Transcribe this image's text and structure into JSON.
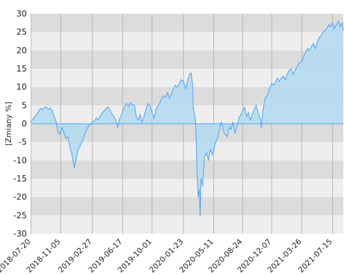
{
  "chart_data": {
    "type": "area",
    "title": "",
    "xlabel": "",
    "ylabel": "[Zmiany %]",
    "ylim": [
      -30,
      30
    ],
    "yticks": [
      -30,
      -25,
      -20,
      -15,
      -10,
      -5,
      0,
      5,
      10,
      15,
      20,
      25,
      30
    ],
    "xlim": [
      "2018-07-20",
      "2021-08-23"
    ],
    "xticks": [
      "2018-07-20",
      "2018-11-05",
      "2019-02-27",
      "2019-06-17",
      "2019-10-01",
      "2020-01-23",
      "2020-05-11",
      "2020-08-24",
      "2020-12-07",
      "2021-03-26",
      "2021-07-15"
    ],
    "grid": true,
    "colors": {
      "line": "#4a9ff5",
      "fill": "#b4dcf0",
      "band_dark": "#dcdcdc",
      "band_light": "#eeeeee"
    },
    "series": [
      {
        "name": "",
        "points": [
          [
            "2018-07-20",
            0.5
          ],
          [
            "2018-07-27",
            1.2
          ],
          [
            "2018-08-03",
            2.0
          ],
          [
            "2018-08-10",
            2.6
          ],
          [
            "2018-08-17",
            3.5
          ],
          [
            "2018-08-24",
            4.2
          ],
          [
            "2018-08-31",
            3.8
          ],
          [
            "2018-09-07",
            4.5
          ],
          [
            "2018-09-14",
            4.6
          ],
          [
            "2018-09-21",
            3.9
          ],
          [
            "2018-09-28",
            4.2
          ],
          [
            "2018-10-05",
            3.6
          ],
          [
            "2018-10-12",
            2.0
          ],
          [
            "2018-10-19",
            0.5
          ],
          [
            "2018-10-26",
            -2.5
          ],
          [
            "2018-11-02",
            -2.8
          ],
          [
            "2018-11-09",
            -1.0
          ],
          [
            "2018-11-16",
            -2.5
          ],
          [
            "2018-11-23",
            -4.0
          ],
          [
            "2018-11-30",
            -3.5
          ],
          [
            "2018-12-07",
            -6.0
          ],
          [
            "2018-12-14",
            -8.0
          ],
          [
            "2018-12-21",
            -11.0
          ],
          [
            "2018-12-24",
            -12.0
          ],
          [
            "2018-12-31",
            -9.5
          ],
          [
            "2019-01-07",
            -7.0
          ],
          [
            "2019-01-14",
            -6.0
          ],
          [
            "2019-01-21",
            -5.0
          ],
          [
            "2019-01-28",
            -3.5
          ],
          [
            "2019-02-04",
            -2.0
          ],
          [
            "2019-02-11",
            -1.0
          ],
          [
            "2019-02-18",
            -0.2
          ],
          [
            "2019-02-27",
            0.5
          ],
          [
            "2019-03-07",
            0.8
          ],
          [
            "2019-03-14",
            1.6
          ],
          [
            "2019-03-21",
            1.0
          ],
          [
            "2019-03-28",
            2.2
          ],
          [
            "2019-04-04",
            3.0
          ],
          [
            "2019-04-11",
            3.6
          ],
          [
            "2019-04-18",
            4.2
          ],
          [
            "2019-04-25",
            4.6
          ],
          [
            "2019-05-02",
            3.8
          ],
          [
            "2019-05-09",
            2.6
          ],
          [
            "2019-05-16",
            2.0
          ],
          [
            "2019-05-23",
            1.0
          ],
          [
            "2019-05-30",
            -1.0
          ],
          [
            "2019-06-06",
            1.5
          ],
          [
            "2019-06-13",
            2.5
          ],
          [
            "2019-06-17",
            3.5
          ],
          [
            "2019-06-24",
            4.8
          ],
          [
            "2019-07-01",
            5.5
          ],
          [
            "2019-07-08",
            4.8
          ],
          [
            "2019-07-15",
            5.8
          ],
          [
            "2019-07-22",
            5.2
          ],
          [
            "2019-07-29",
            5.0
          ],
          [
            "2019-08-05",
            2.0
          ],
          [
            "2019-08-12",
            1.0
          ],
          [
            "2019-08-19",
            2.5
          ],
          [
            "2019-08-26",
            0.5
          ],
          [
            "2019-09-02",
            2.0
          ],
          [
            "2019-09-09",
            4.0
          ],
          [
            "2019-09-16",
            5.5
          ],
          [
            "2019-09-23",
            5.0
          ],
          [
            "2019-10-01",
            3.0
          ],
          [
            "2019-10-08",
            1.5
          ],
          [
            "2019-10-15",
            4.0
          ],
          [
            "2019-10-22",
            4.8
          ],
          [
            "2019-10-29",
            5.6
          ],
          [
            "2019-11-05",
            7.0
          ],
          [
            "2019-11-12",
            7.6
          ],
          [
            "2019-11-19",
            7.2
          ],
          [
            "2019-11-26",
            8.5
          ],
          [
            "2019-12-03",
            7.0
          ],
          [
            "2019-12-10",
            8.0
          ],
          [
            "2019-12-17",
            9.5
          ],
          [
            "2019-12-24",
            10.5
          ],
          [
            "2019-12-31",
            10.0
          ],
          [
            "2020-01-07",
            10.8
          ],
          [
            "2020-01-14",
            12.0
          ],
          [
            "2020-01-23",
            11.5
          ],
          [
            "2020-01-31",
            9.5
          ],
          [
            "2020-02-07",
            12.0
          ],
          [
            "2020-02-14",
            13.5
          ],
          [
            "2020-02-20",
            13.8
          ],
          [
            "2020-02-24",
            11.0
          ],
          [
            "2020-02-28",
            4.0
          ],
          [
            "2020-03-06",
            1.0
          ],
          [
            "2020-03-09",
            -5.0
          ],
          [
            "2020-03-12",
            -14.0
          ],
          [
            "2020-03-16",
            -20.0
          ],
          [
            "2020-03-20",
            -18.0
          ],
          [
            "2020-03-23",
            -25.2
          ],
          [
            "2020-03-26",
            -15.0
          ],
          [
            "2020-04-01",
            -17.0
          ],
          [
            "2020-04-08",
            -9.0
          ],
          [
            "2020-04-15",
            -8.0
          ],
          [
            "2020-04-22",
            -10.0
          ],
          [
            "2020-04-29",
            -7.0
          ],
          [
            "2020-05-06",
            -8.5
          ],
          [
            "2020-05-11",
            -7.5
          ],
          [
            "2020-05-18",
            -5.0
          ],
          [
            "2020-05-25",
            -4.0
          ],
          [
            "2020-06-01",
            -1.5
          ],
          [
            "2020-06-08",
            0.5
          ],
          [
            "2020-06-15",
            -2.0
          ],
          [
            "2020-06-22",
            -3.0
          ],
          [
            "2020-06-29",
            -3.5
          ],
          [
            "2020-07-06",
            -1.0
          ],
          [
            "2020-07-13",
            -1.5
          ],
          [
            "2020-07-20",
            0.5
          ],
          [
            "2020-07-27",
            -2.5
          ],
          [
            "2020-08-03",
            -1.0
          ],
          [
            "2020-08-10",
            1.5
          ],
          [
            "2020-08-17",
            2.5
          ],
          [
            "2020-08-24",
            3.5
          ],
          [
            "2020-08-31",
            4.5
          ],
          [
            "2020-09-07",
            2.0
          ],
          [
            "2020-09-14",
            3.0
          ],
          [
            "2020-09-21",
            1.0
          ],
          [
            "2020-09-28",
            2.5
          ],
          [
            "2020-10-05",
            4.0
          ],
          [
            "2020-10-12",
            5.0
          ],
          [
            "2020-10-19",
            3.0
          ],
          [
            "2020-10-26",
            1.5
          ],
          [
            "2020-10-30",
            -1.0
          ],
          [
            "2020-11-06",
            4.0
          ],
          [
            "2020-11-13",
            7.0
          ],
          [
            "2020-11-20",
            7.5
          ],
          [
            "2020-11-27",
            9.0
          ],
          [
            "2020-12-07",
            11.0
          ],
          [
            "2020-12-14",
            10.5
          ],
          [
            "2020-12-21",
            11.5
          ],
          [
            "2020-12-28",
            12.5
          ],
          [
            "2021-01-04",
            11.5
          ],
          [
            "2021-01-11",
            12.5
          ],
          [
            "2021-01-18",
            13.0
          ],
          [
            "2021-01-25",
            12.0
          ],
          [
            "2021-02-01",
            13.5
          ],
          [
            "2021-02-08",
            14.5
          ],
          [
            "2021-02-15",
            15.0
          ],
          [
            "2021-02-22",
            13.5
          ],
          [
            "2021-03-01",
            14.5
          ],
          [
            "2021-03-08",
            15.5
          ],
          [
            "2021-03-15",
            16.5
          ],
          [
            "2021-03-26",
            17.0
          ],
          [
            "2021-04-02",
            18.5
          ],
          [
            "2021-04-09",
            19.5
          ],
          [
            "2021-04-16",
            20.5
          ],
          [
            "2021-04-23",
            20.0
          ],
          [
            "2021-04-30",
            21.0
          ],
          [
            "2021-05-07",
            22.0
          ],
          [
            "2021-05-14",
            20.5
          ],
          [
            "2021-05-21",
            22.5
          ],
          [
            "2021-05-28",
            23.5
          ],
          [
            "2021-06-04",
            24.0
          ],
          [
            "2021-06-11",
            25.0
          ],
          [
            "2021-06-18",
            25.5
          ],
          [
            "2021-06-25",
            26.0
          ],
          [
            "2021-07-02",
            27.0
          ],
          [
            "2021-07-09",
            26.5
          ],
          [
            "2021-07-15",
            27.5
          ],
          [
            "2021-07-22",
            26.0
          ],
          [
            "2021-07-29",
            27.0
          ],
          [
            "2021-08-05",
            28.0
          ],
          [
            "2021-08-12",
            26.5
          ],
          [
            "2021-08-19",
            27.5
          ],
          [
            "2021-08-23",
            25.5
          ]
        ]
      }
    ]
  }
}
